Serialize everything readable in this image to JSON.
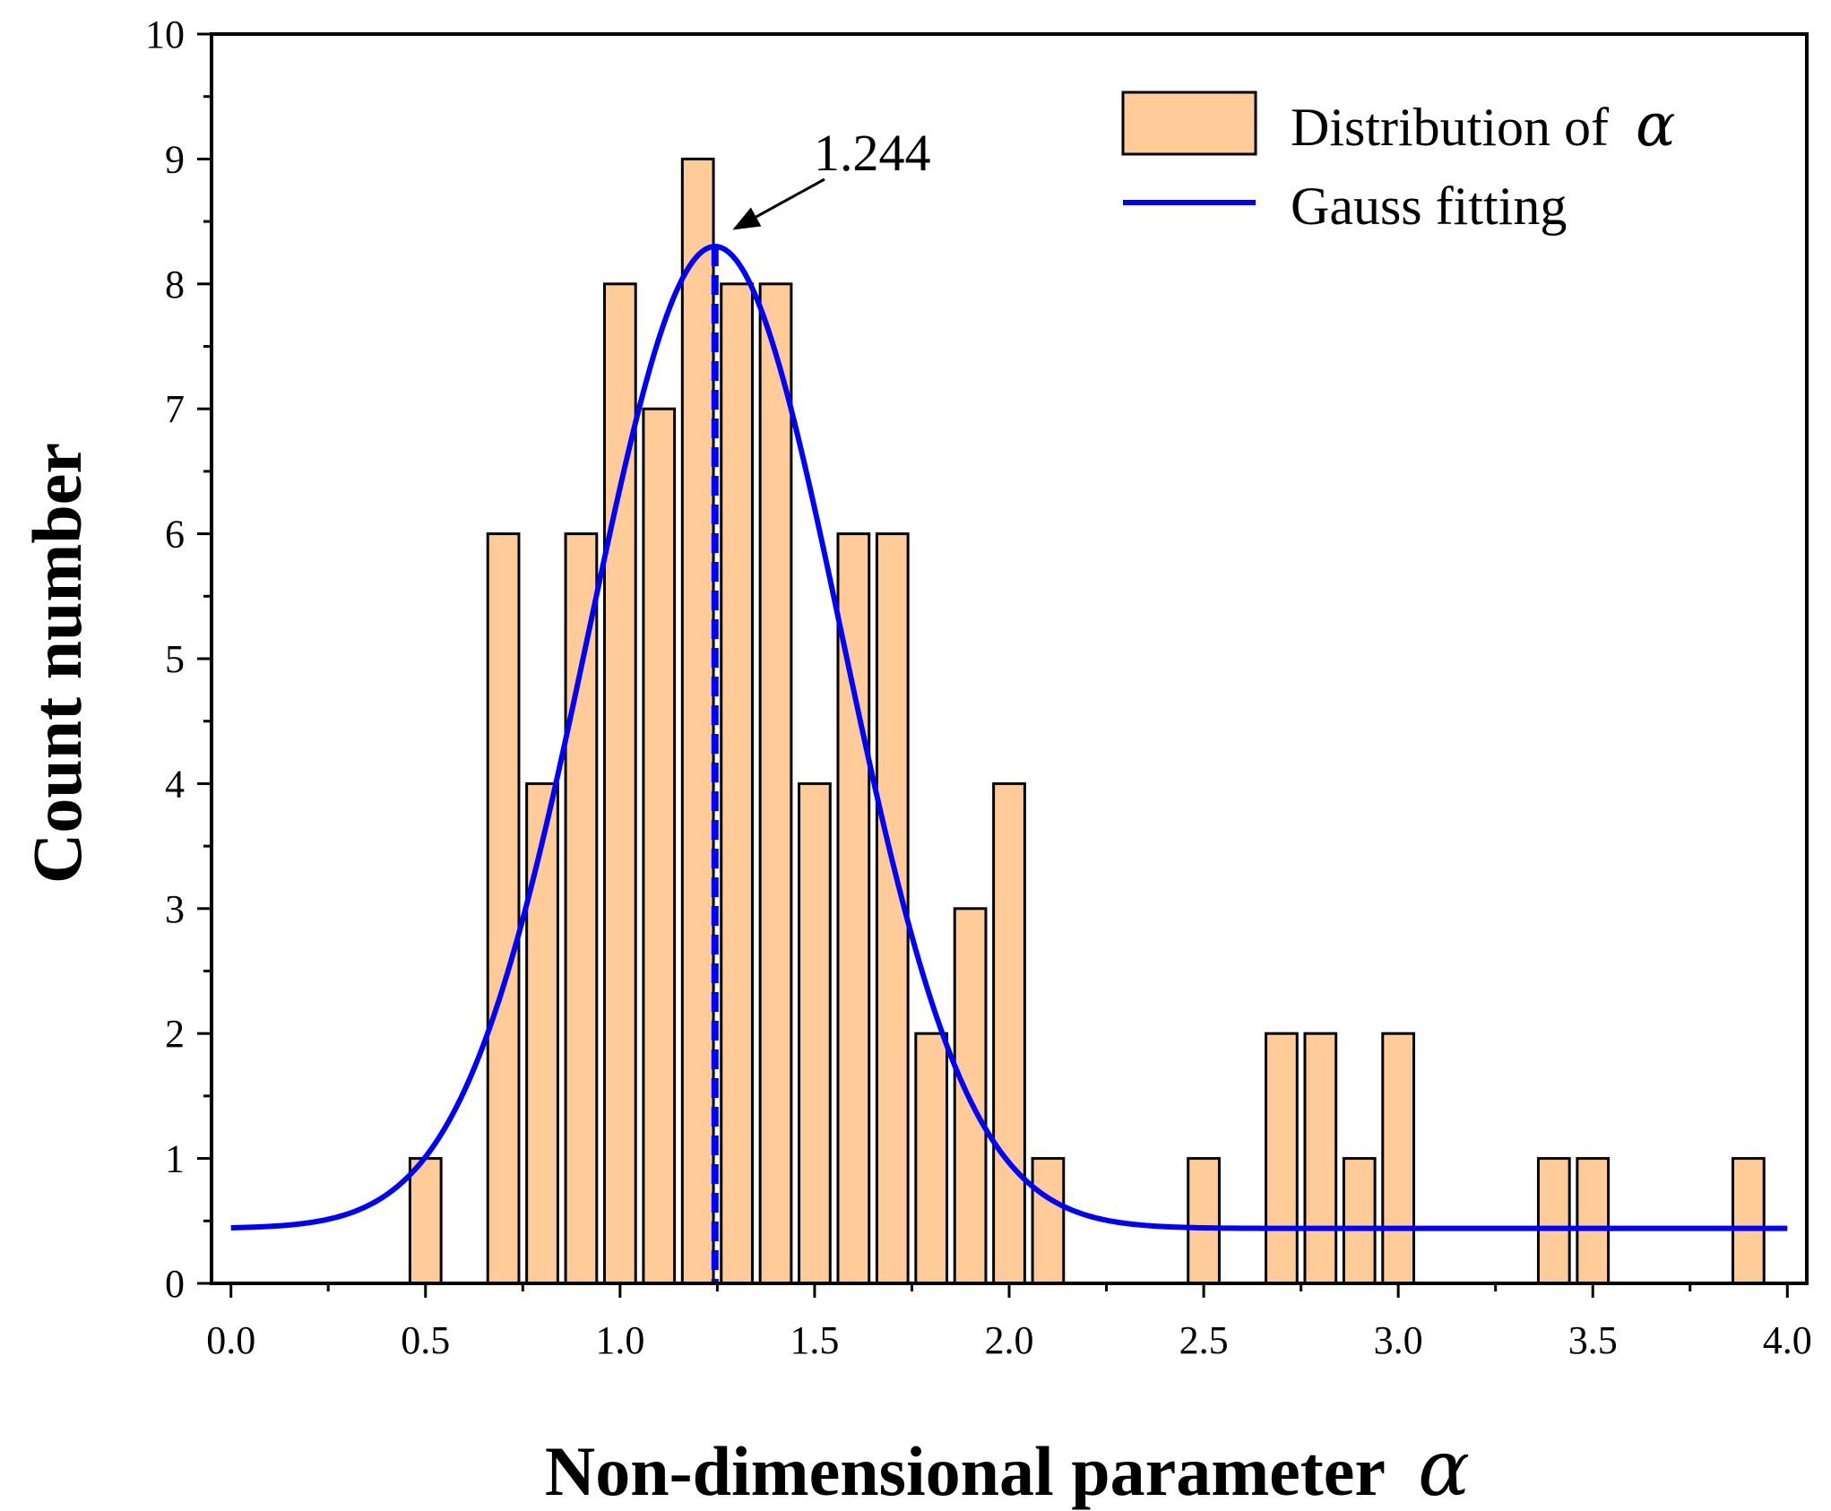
{
  "chart_data": {
    "type": "bar",
    "title": "",
    "xlabel": "Non-dimensional parameter",
    "xlabel_symbol": "α",
    "ylabel": "Count number",
    "xlim": [
      -0.05,
      4.05
    ],
    "ylim": [
      0,
      10
    ],
    "x_ticks": [
      "0.0",
      "0.5",
      "1.0",
      "1.5",
      "2.0",
      "2.5",
      "3.0",
      "3.5",
      "4.0"
    ],
    "y_ticks": [
      "0",
      "1",
      "2",
      "3",
      "4",
      "5",
      "6",
      "7",
      "8",
      "9",
      "10"
    ],
    "bin_width": 0.1,
    "series": [
      {
        "name": "Distribution of",
        "name_symbol": "α",
        "kind": "histogram",
        "color": "#FFCC99",
        "edge_color": "#000000",
        "x": [
          0.5,
          0.7,
          0.8,
          0.9,
          1.0,
          1.1,
          1.2,
          1.3,
          1.4,
          1.5,
          1.6,
          1.7,
          1.8,
          1.9,
          2.0,
          2.1,
          2.5,
          2.7,
          2.8,
          2.9,
          3.0,
          3.4,
          3.5,
          3.9
        ],
        "values": [
          1,
          6,
          4,
          6,
          8,
          7,
          9,
          8,
          8,
          4,
          6,
          6,
          2,
          3,
          4,
          1,
          1,
          2,
          2,
          1,
          2,
          1,
          1,
          1
        ]
      },
      {
        "name": "Gauss fitting",
        "kind": "line",
        "color": "#0000FF",
        "model": "y0 + A*exp(-(x-xc)^2/(2*w^2))",
        "params": {
          "y0": 0.44,
          "A": 7.86,
          "xc": 1.244,
          "w": 0.325
        }
      }
    ],
    "annotation": {
      "text": "1.244",
      "x": 1.244,
      "style": "dashed vertical line with arrow",
      "color": "#0000FF"
    },
    "legend_position": "top-right"
  }
}
